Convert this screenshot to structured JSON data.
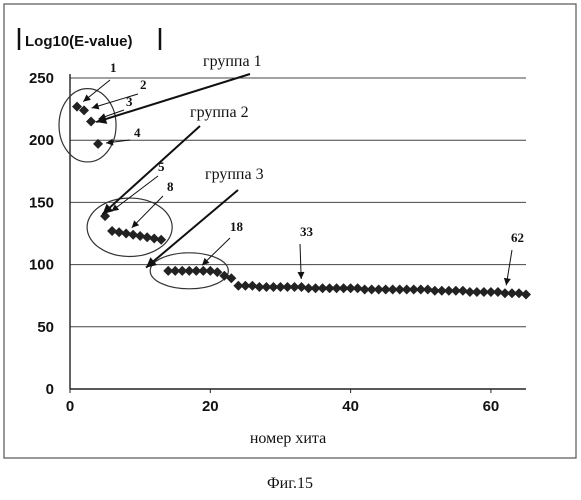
{
  "chart_data": {
    "type": "scatter",
    "ylabel": "Log10(E-value)",
    "xlabel": "номер хита",
    "xlim": [
      0,
      65
    ],
    "ylim": [
      0,
      250
    ],
    "xticks": [
      0,
      20,
      40,
      60
    ],
    "yticks": [
      0,
      50,
      100,
      150,
      200,
      250
    ],
    "grid": "horizontal",
    "caption": "Фиг.15",
    "series": [
      {
        "x": [
          1,
          2,
          3,
          4,
          5,
          6,
          7,
          8,
          9,
          10,
          11,
          12,
          13,
          14,
          15,
          16,
          17,
          18,
          19,
          20,
          21,
          22,
          23,
          24,
          25,
          26,
          27,
          28,
          29,
          30,
          31,
          32,
          33,
          34,
          35,
          36,
          37,
          38,
          39,
          40,
          41,
          42,
          43,
          44,
          45,
          46,
          47,
          48,
          49,
          50,
          51,
          52,
          53,
          54,
          55,
          56,
          57,
          58,
          59,
          60,
          61,
          62,
          63,
          64,
          65
        ],
        "y": [
          227,
          224,
          215,
          197,
          139,
          127,
          126,
          125,
          124,
          123,
          122,
          121,
          120,
          95,
          95,
          95,
          95,
          95,
          95,
          95,
          94,
          91,
          89,
          83,
          83,
          83,
          82,
          82,
          82,
          82,
          82,
          82,
          82,
          81,
          81,
          81,
          81,
          81,
          81,
          81,
          81,
          80,
          80,
          80,
          80,
          80,
          80,
          80,
          80,
          80,
          80,
          79,
          79,
          79,
          79,
          79,
          78,
          78,
          78,
          78,
          78,
          77,
          77,
          77,
          76
        ]
      }
    ],
    "groups": [
      {
        "label": "группа 1",
        "points": [
          1,
          2,
          3,
          4
        ],
        "range": [
          0,
          5
        ]
      },
      {
        "label": "группа 2",
        "points": [
          5,
          8
        ],
        "range": [
          4,
          13
        ]
      },
      {
        "label": "группа 3",
        "points": [
          18
        ],
        "range": [
          13,
          21
        ]
      }
    ],
    "hit_labels": [
      "1",
      "2",
      "3",
      "4",
      "5",
      "8",
      "18",
      "33",
      "62"
    ]
  }
}
